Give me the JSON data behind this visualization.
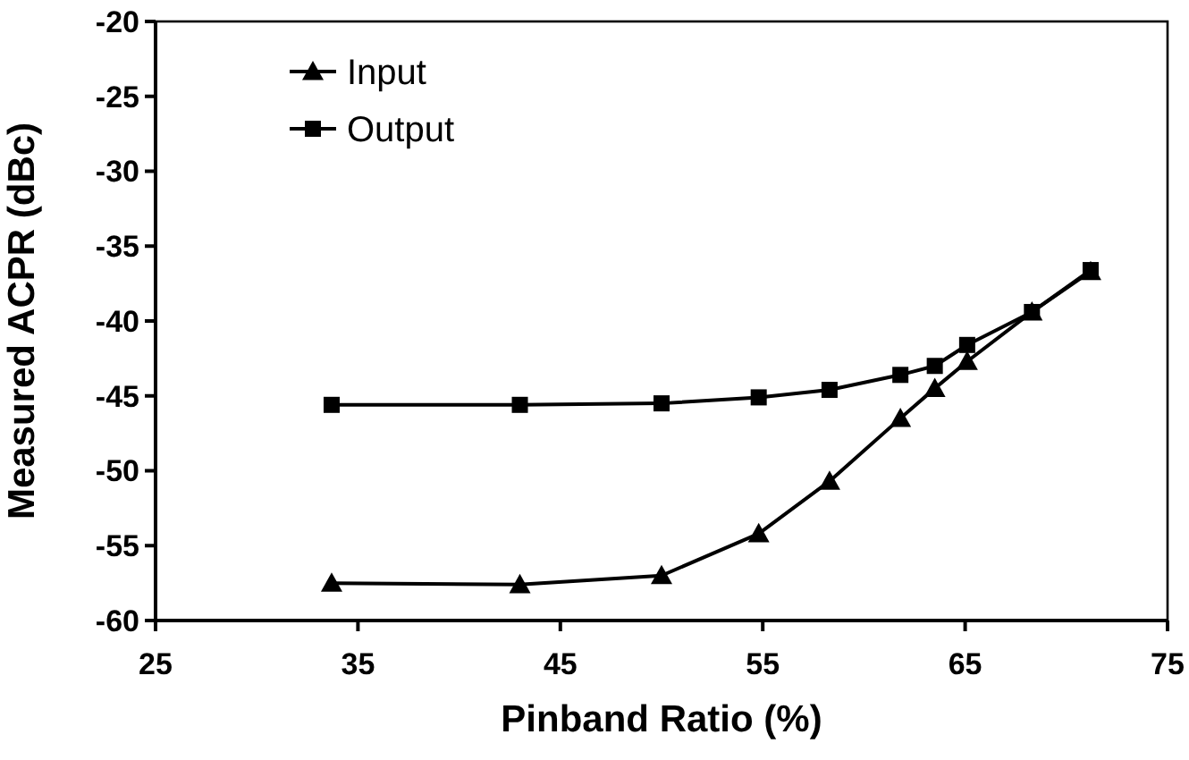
{
  "chart_data": {
    "type": "line",
    "xlabel": "Pinband Ratio (%)",
    "ylabel": "Measured ACPR (dBc)",
    "xlim": [
      25,
      75
    ],
    "xticks": [
      25,
      35,
      45,
      55,
      65,
      75
    ],
    "ylim": [
      -60,
      -20
    ],
    "yticks": [
      -60,
      -55,
      -50,
      -45,
      -40,
      -35,
      -30,
      -25,
      -20
    ],
    "legend": "top left",
    "grid": false,
    "series": [
      {
        "name": "Input",
        "color": "#000000",
        "marker": "triangle",
        "x": [
          33.7,
          43.0,
          50.0,
          54.8,
          58.3,
          61.8,
          63.5,
          65.1,
          68.3,
          71.2
        ],
        "values": [
          -57.5,
          -57.6,
          -57.0,
          -54.2,
          -50.7,
          -46.5,
          -44.5,
          -42.7,
          -39.4,
          -36.7
        ]
      },
      {
        "name": "Output",
        "color": "#000000",
        "marker": "square",
        "x": [
          33.7,
          43.0,
          50.0,
          54.8,
          58.3,
          61.8,
          63.5,
          65.1,
          68.3,
          71.2
        ],
        "values": [
          -45.6,
          -45.6,
          -45.5,
          -45.1,
          -44.6,
          -43.6,
          -43.0,
          -41.6,
          -39.4,
          -36.6
        ]
      }
    ]
  }
}
